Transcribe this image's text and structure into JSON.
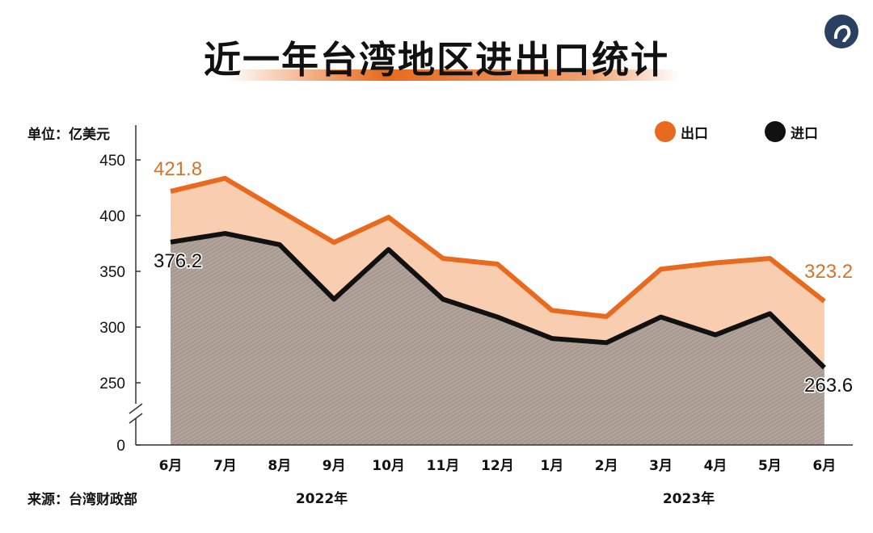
{
  "title": "近一年台湾地区进出口统计",
  "unit_label": "单位：亿美元",
  "source": "来源：台湾财政部",
  "logo": "circular-logo",
  "colors": {
    "export": "#e86a1e",
    "export_fill": "#f8cdb0",
    "import": "#111111",
    "import_fill": "#a89a90"
  },
  "chart_data": {
    "type": "area",
    "categories": [
      "6月",
      "7月",
      "8月",
      "9月",
      "10月",
      "11月",
      "12月",
      "1月",
      "2月",
      "3月",
      "4月",
      "5月",
      "6月"
    ],
    "year_labels": [
      "2022年",
      "2023年"
    ],
    "yticks": [
      0,
      250,
      300,
      350,
      400,
      450
    ],
    "ylim": [
      250,
      450
    ],
    "axis_break": true,
    "legend_position": "top-right",
    "series": [
      {
        "name": "出口",
        "values": [
          421.8,
          433.5,
          404.5,
          376,
          398.5,
          361.6,
          356.5,
          315,
          309.4,
          352,
          357.6,
          361.6,
          323.2
        ]
      },
      {
        "name": "进口",
        "values": [
          376.2,
          384,
          374,
          325,
          369.6,
          325,
          309,
          289.8,
          286,
          309,
          293,
          312,
          263.6
        ]
      }
    ],
    "data_labels": {
      "export_first": "421.8",
      "export_last": "323.2",
      "import_first": "376.2",
      "import_last": "263.6"
    }
  }
}
